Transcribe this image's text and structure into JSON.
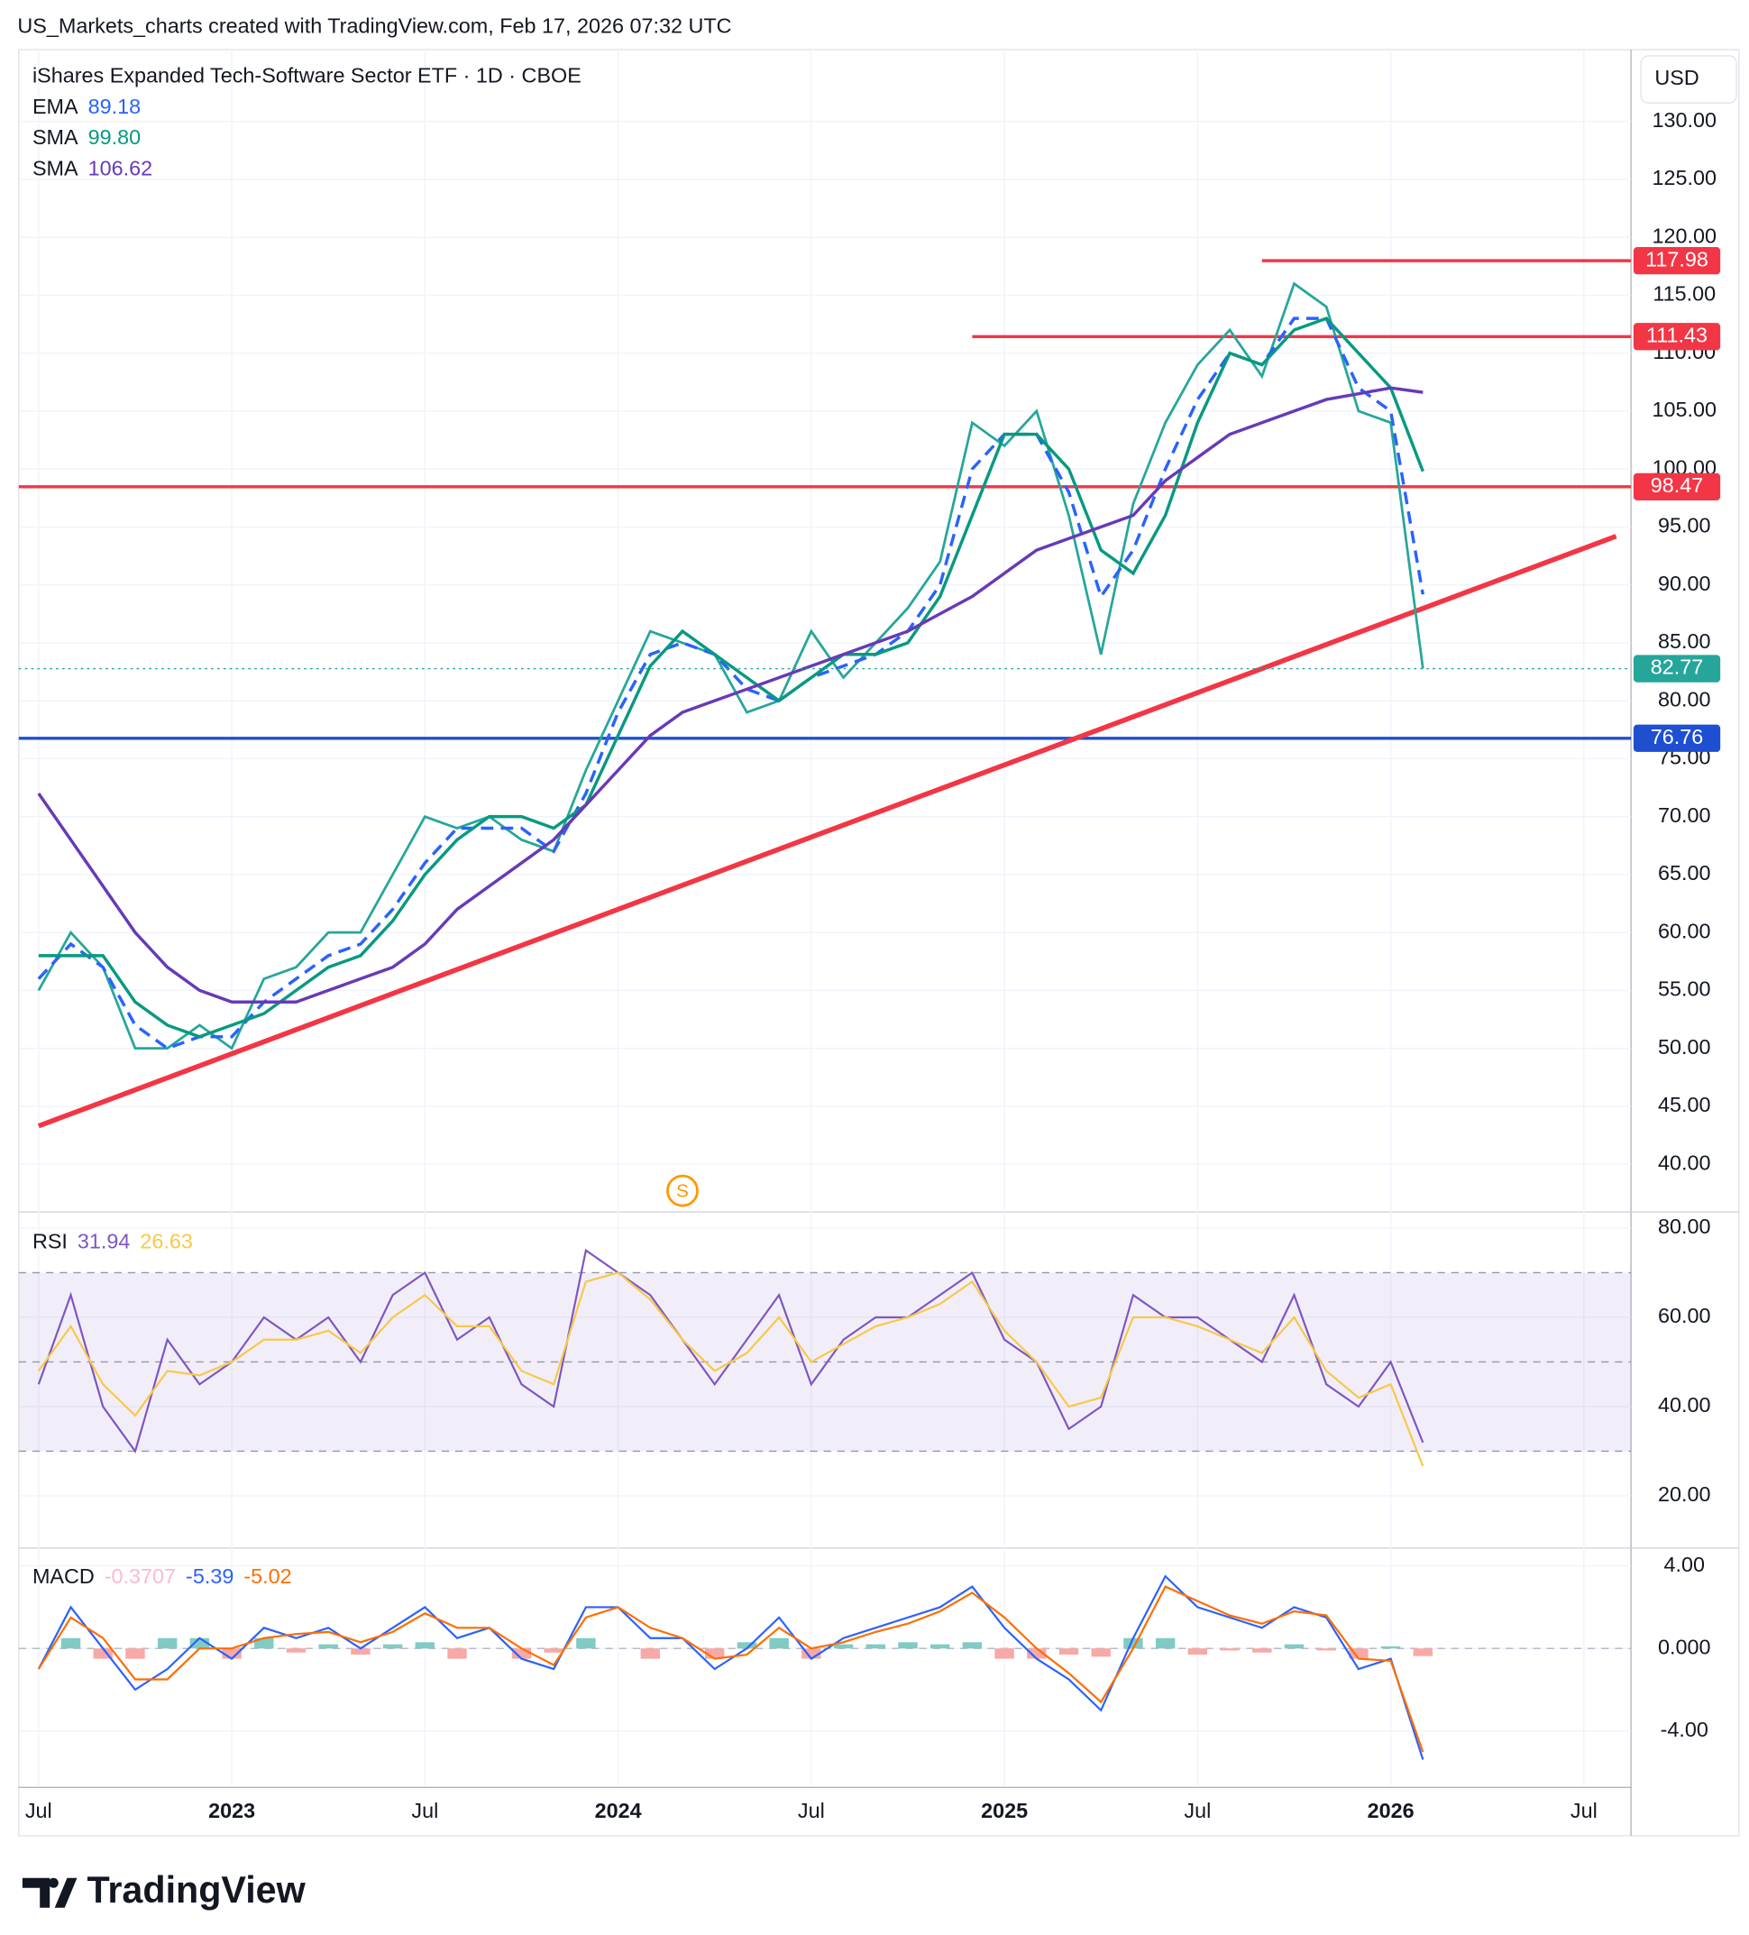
{
  "header": "US_Markets_charts created with TradingView.com, Feb 17, 2026 07:32 UTC",
  "logo": "TradingView",
  "chart_data": [
    {
      "type": "line",
      "title": "iShares Expanded Tech-Software Sector ETF · 1D · CBOE",
      "currency": "USD",
      "x": [
        "2022-07",
        "2022-08",
        "2022-09",
        "2022-10",
        "2022-11",
        "2022-12",
        "2023-01",
        "2023-02",
        "2023-03",
        "2023-04",
        "2023-05",
        "2023-06",
        "2023-07",
        "2023-08",
        "2023-09",
        "2023-10",
        "2023-11",
        "2023-12",
        "2024-01",
        "2024-02",
        "2024-03",
        "2024-04",
        "2024-05",
        "2024-06",
        "2024-07",
        "2024-08",
        "2024-09",
        "2024-10",
        "2024-11",
        "2024-12",
        "2025-01",
        "2025-02",
        "2025-03",
        "2025-04",
        "2025-05",
        "2025-06",
        "2025-07",
        "2025-08",
        "2025-09",
        "2025-10",
        "2025-11",
        "2025-12",
        "2026-01",
        "2026-02"
      ],
      "values": [
        55,
        60,
        57,
        50,
        50,
        52,
        50,
        56,
        57,
        60,
        60,
        65,
        70,
        69,
        70,
        68,
        67,
        74,
        80,
        86,
        85,
        84,
        79,
        80,
        86,
        82,
        85,
        88,
        92,
        104,
        102,
        105,
        96,
        84,
        97,
        104,
        109,
        112,
        108,
        116,
        114,
        105,
        104,
        82.77
      ],
      "color": "#26a69a",
      "indicators": [
        {
          "name": "EMA",
          "color": "#2962ff",
          "dashed": true,
          "values": [
            56,
            59,
            57,
            52,
            50,
            51,
            51,
            54,
            56,
            58,
            59,
            62,
            66,
            69,
            69,
            69,
            67,
            72,
            79,
            84,
            85,
            84,
            81,
            80,
            82,
            83,
            84,
            86,
            90,
            100,
            103,
            103,
            98,
            89,
            93,
            100,
            106,
            110,
            109,
            113,
            113,
            107,
            105,
            89.18
          ]
        },
        {
          "name": "SMA",
          "color": "#089981",
          "legend_label": "99.80",
          "values": [
            58,
            58,
            58,
            54,
            52,
            51,
            52,
            53,
            55,
            57,
            58,
            61,
            65,
            68,
            70,
            70,
            69,
            71,
            77,
            83,
            86,
            84,
            82,
            80,
            82,
            84,
            84,
            85,
            89,
            96,
            103,
            103,
            100,
            93,
            91,
            96,
            104,
            110,
            109,
            112,
            113,
            110,
            107,
            99.8
          ]
        },
        {
          "name": "SMA",
          "color": "#673ab7",
          "values": [
            72,
            68,
            64,
            60,
            57,
            55,
            54,
            54,
            54,
            55,
            56,
            57,
            59,
            62,
            64,
            66,
            68,
            71,
            74,
            77,
            79,
            80,
            81,
            82,
            83,
            84,
            85,
            86,
            87.5,
            89,
            91,
            93,
            94,
            95,
            96,
            99,
            101,
            103,
            104,
            105,
            106,
            106.5,
            107,
            106.62
          ]
        }
      ],
      "levels": [
        {
          "value": 117.98,
          "color": "#f23645",
          "start": "2025-09"
        },
        {
          "value": 111.43,
          "color": "#f23645",
          "start": "2024-12"
        },
        {
          "value": 98.47,
          "color": "#f23645"
        },
        {
          "value": 76.76,
          "color": "#1e4fd1"
        }
      ],
      "trendlines": [
        {
          "x": [
            "2022-07",
            "2026-08"
          ],
          "values": [
            43.3,
            94.2
          ],
          "color": "#f23645"
        }
      ],
      "markers": [
        {
          "x": "2024-03",
          "label": "S"
        }
      ],
      "xlim": [
        "2022-07",
        "2026-07"
      ],
      "xticks": [
        {
          "value": "2022-07",
          "label": "Jul"
        },
        {
          "value": "2023-01",
          "label": "2023"
        },
        {
          "value": "2023-07",
          "label": "Jul"
        },
        {
          "value": "2024-01",
          "label": "2024"
        },
        {
          "value": "2024-07",
          "label": "Jul"
        },
        {
          "value": "2025-01",
          "label": "2025"
        },
        {
          "value": "2025-07",
          "label": "Jul"
        },
        {
          "value": "2026-01",
          "label": "2026"
        },
        {
          "value": "2026-07",
          "label": "Jul"
        }
      ],
      "ylim": [
        36.1,
        136.2
      ],
      "yticks": [
        {
          "value": 40,
          "label": "40.00"
        },
        {
          "value": 45,
          "label": "45.00"
        },
        {
          "value": 50,
          "label": "50.00"
        },
        {
          "value": 55,
          "label": "55.00"
        },
        {
          "value": 60,
          "label": "60.00"
        },
        {
          "value": 65,
          "label": "65.00"
        },
        {
          "value": 70,
          "label": "70.00"
        },
        {
          "value": 75,
          "label": "75.00"
        },
        {
          "value": 80,
          "label": "80.00"
        },
        {
          "value": 85,
          "label": "85.00"
        },
        {
          "value": 90,
          "label": "90.00"
        },
        {
          "value": 95,
          "label": "95.00"
        },
        {
          "value": 100,
          "label": "100.00"
        },
        {
          "value": 105,
          "label": "105.00"
        },
        {
          "value": 110,
          "label": "110.00"
        },
        {
          "value": 115,
          "label": "115.00"
        },
        {
          "value": 120,
          "label": "120.00"
        },
        {
          "value": 125,
          "label": "125.00"
        },
        {
          "value": 130,
          "label": "130.00"
        }
      ],
      "grid": true
    },
    {
      "type": "line",
      "title": "RSI",
      "series": [
        {
          "color": "#7e57c2",
          "values": [
            45,
            65,
            40,
            30,
            55,
            45,
            50,
            60,
            55,
            60,
            50,
            65,
            70,
            55,
            60,
            45,
            40,
            75,
            70,
            65,
            55,
            45,
            55,
            65,
            45,
            55,
            60,
            60,
            65,
            70,
            55,
            50,
            35,
            40,
            65,
            60,
            60,
            55,
            50,
            65,
            45,
            40,
            50,
            31.94
          ]
        },
        {
          "color": "#f7c948",
          "values": [
            48,
            58,
            45,
            38,
            48,
            47,
            50,
            55,
            55,
            57,
            52,
            60,
            65,
            58,
            58,
            48,
            45,
            68,
            70,
            64,
            55,
            48,
            52,
            60,
            50,
            54,
            58,
            60,
            63,
            68,
            57,
            50,
            40,
            42,
            60,
            60,
            58,
            55,
            52,
            60,
            48,
            42,
            45,
            26.63
          ]
        }
      ],
      "levels": [
        70,
        50,
        30
      ],
      "band_color": "#7e57c2",
      "ylim": [
        8.6,
        82.8
      ],
      "yticks": [
        {
          "value": 20,
          "label": "20.00"
        },
        {
          "value": 40,
          "label": "40.00"
        },
        {
          "value": 60,
          "label": "60.00"
        },
        {
          "value": 80,
          "label": "80.00"
        }
      ],
      "grid": true
    },
    {
      "type": "bar",
      "title": "MACD",
      "values": [
        0,
        0.5,
        -0.5,
        -0.5,
        0.5,
        0.5,
        -0.5,
        0.5,
        -0.2,
        0.2,
        -0.3,
        0.2,
        0.3,
        -0.5,
        0,
        -0.5,
        -0.2,
        0.5,
        0,
        -0.5,
        0,
        -0.5,
        0.3,
        0.5,
        -0.5,
        0.2,
        0.2,
        0.3,
        0.2,
        0.3,
        -0.5,
        -0.5,
        -0.3,
        -0.4,
        0.5,
        0.5,
        -0.3,
        -0.1,
        -0.2,
        0.2,
        -0.1,
        -0.5,
        0.1,
        -0.3707
      ],
      "colors": {
        "up": "#80cbc4",
        "down": "#f7a9a7"
      },
      "legend_color": "#f8bbd0",
      "series": [
        {
          "color": "#2962ff",
          "values": [
            -1,
            2,
            0,
            -2,
            -1,
            0.5,
            -0.5,
            1,
            0.5,
            1,
            0,
            1,
            2,
            0.5,
            1,
            -0.5,
            -1,
            2,
            2,
            0.5,
            0.5,
            -1,
            0,
            1.5,
            -0.5,
            0.5,
            1,
            1.5,
            2,
            3,
            1,
            -0.5,
            -1.5,
            -3,
            0.5,
            3.5,
            2,
            1.5,
            1,
            2,
            1.5,
            -1,
            -0.5,
            -5.39
          ]
        },
        {
          "color": "#ff6d00",
          "values": [
            -1,
            1.5,
            0.5,
            -1.5,
            -1.5,
            0,
            0,
            0.5,
            0.7,
            0.8,
            0.3,
            0.8,
            1.7,
            1,
            1,
            0,
            -0.8,
            1.5,
            2,
            1,
            0.5,
            -0.5,
            -0.3,
            1,
            0,
            0.3,
            0.8,
            1.2,
            1.8,
            2.7,
            1.5,
            0,
            -1.2,
            -2.6,
            0,
            3,
            2.3,
            1.6,
            1.2,
            1.8,
            1.6,
            -0.5,
            -0.6,
            -5.02
          ]
        }
      ],
      "ylim": [
        -6.68,
        4.75
      ],
      "yticks": [
        {
          "value": 4,
          "label": "4.00"
        },
        {
          "value": 0,
          "label": "0.000"
        },
        {
          "value": -4,
          "label": "-4.00"
        }
      ],
      "grid": true
    }
  ]
}
